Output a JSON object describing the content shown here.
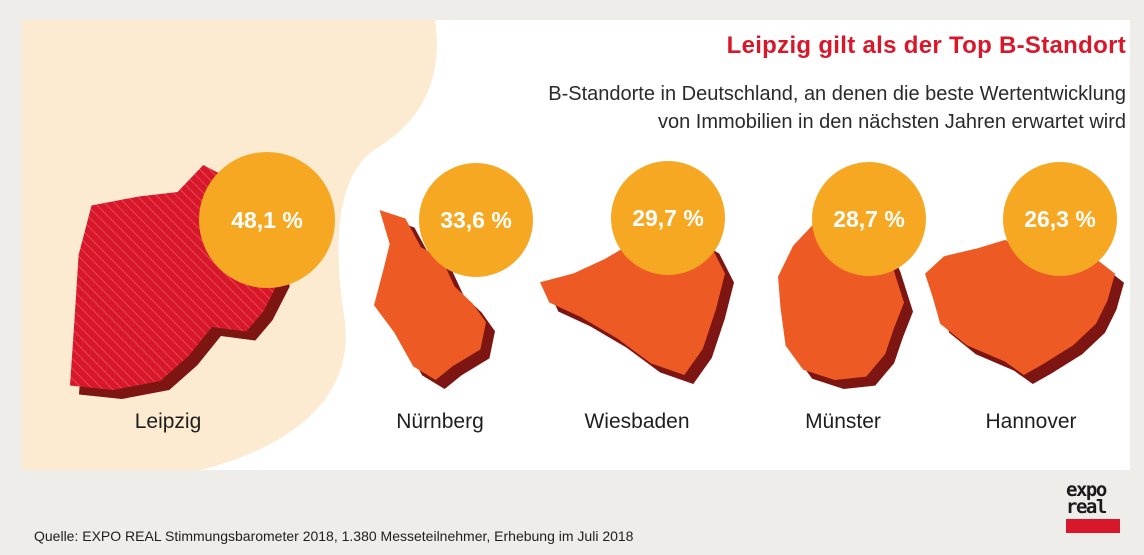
{
  "title": "Leipzig gilt als der Top B-Standort",
  "subtitle_lines": [
    "B-Standorte in Deutschland, an denen die beste Wertentwicklung",
    "von Immobilien in den nächsten Jahren erwartet wird"
  ],
  "source": "Quelle: EXPO REAL Stimmungsbarometer 2018, 1.380 Messeteilnehmer, Erhebung im Juli 2018",
  "logo": {
    "line1": "expo",
    "line2": "real"
  },
  "colors": {
    "highlight_map": "#d8182a",
    "map": "#ee5a24",
    "map_shadow": "#7d1512",
    "bubble": "#f7a823",
    "blob": "#fcebd0",
    "title": "#d8182a"
  },
  "chart_data": {
    "type": "bar",
    "title": "Leipzig gilt als der Top B-Standort",
    "subtitle": "B-Standorte in Deutschland, an denen die beste Wertentwicklung von Immobilien in den nächsten Jahren erwartet wird",
    "categories": [
      "Leipzig",
      "Nürnberg",
      "Wiesbaden",
      "Münster",
      "Hannover"
    ],
    "values": [
      48.1,
      33.6,
      29.7,
      28.7,
      26.3
    ],
    "value_labels": [
      "48,1 %",
      "33,6 %",
      "29,7 %",
      "28,7 %",
      "26,3 %"
    ],
    "unit": "%",
    "highlight": "Leipzig",
    "xlabel": "",
    "ylabel": ""
  }
}
